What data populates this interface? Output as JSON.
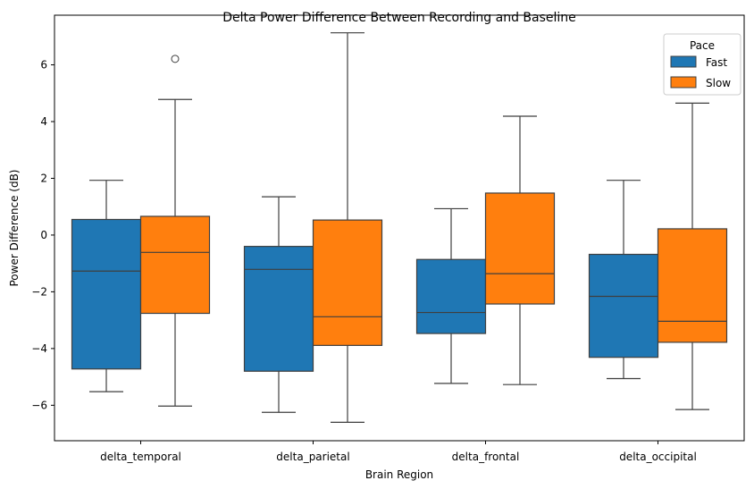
{
  "chart_data": {
    "type": "box",
    "title": "Delta Power Difference Between Recording and Baseline",
    "xlabel": "Brain Region",
    "ylabel": "Power Difference (dB)",
    "ylim": [
      -7.25,
      7.75
    ],
    "yticks": [
      -6,
      -4,
      -2,
      0,
      2,
      4,
      6
    ],
    "categories": [
      "delta_temporal",
      "delta_parietal",
      "delta_frontal",
      "delta_occipital"
    ],
    "legend": {
      "title": "Pace",
      "position": "top-right"
    },
    "grid": false,
    "series": [
      {
        "name": "Fast",
        "color": "#1f77b4",
        "boxes": [
          {
            "whislo": -5.52,
            "q1": -4.72,
            "med": -1.27,
            "q3": 0.55,
            "whishi": 1.93,
            "fliers": []
          },
          {
            "whislo": -6.25,
            "q1": -4.8,
            "med": -1.21,
            "q3": -0.4,
            "whishi": 1.35,
            "fliers": []
          },
          {
            "whislo": -5.23,
            "q1": -3.47,
            "med": -2.73,
            "q3": -0.86,
            "whishi": 0.93,
            "fliers": []
          },
          {
            "whislo": -5.06,
            "q1": -4.31,
            "med": -2.16,
            "q3": -0.68,
            "whishi": 1.93,
            "fliers": []
          }
        ]
      },
      {
        "name": "Slow",
        "color": "#ff7f0e",
        "boxes": [
          {
            "whislo": -6.03,
            "q1": -2.76,
            "med": -0.61,
            "q3": 0.66,
            "whishi": 4.78,
            "fliers": [
              6.21
            ]
          },
          {
            "whislo": -6.6,
            "q1": -3.89,
            "med": -2.88,
            "q3": 0.53,
            "whishi": 7.13,
            "fliers": []
          },
          {
            "whislo": -5.27,
            "q1": -2.43,
            "med": -1.36,
            "q3": 1.48,
            "whishi": 4.19,
            "fliers": []
          },
          {
            "whislo": -6.15,
            "q1": -3.78,
            "med": -3.04,
            "q3": 0.22,
            "whishi": 4.65,
            "fliers": []
          }
        ]
      }
    ]
  }
}
